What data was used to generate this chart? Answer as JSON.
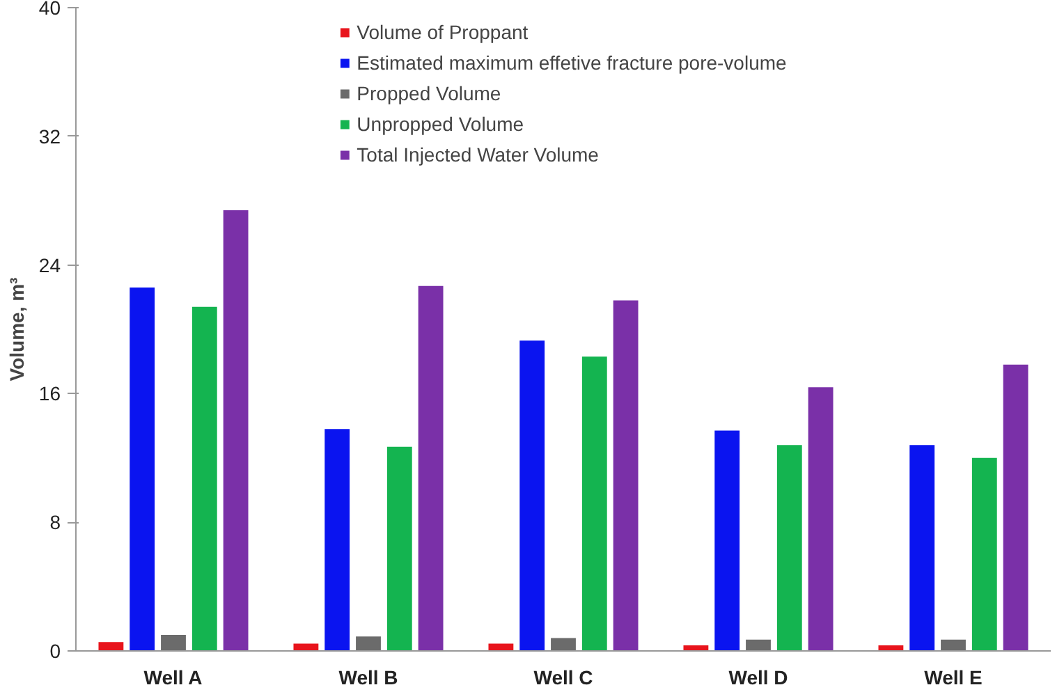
{
  "chart_data": {
    "type": "bar",
    "ylabel": "Volume, m³",
    "categories": [
      "Well A",
      "Well B",
      "Well C",
      "Well D",
      "Well E"
    ],
    "series": [
      {
        "name": "Volume of Proppant",
        "color": "#e8141c",
        "values": [
          0.55,
          0.45,
          0.45,
          0.35,
          0.35
        ]
      },
      {
        "name": "Estimated maximum effetive fracture pore-volume",
        "color": "#0a14f0",
        "values": [
          22.6,
          13.8,
          19.3,
          13.7,
          12.8
        ]
      },
      {
        "name": "Propped Volume",
        "color": "#6b6b6b",
        "values": [
          1.0,
          0.9,
          0.8,
          0.7,
          0.7
        ]
      },
      {
        "name": "Unpropped Volume",
        "color": "#14b450",
        "values": [
          21.4,
          12.7,
          18.3,
          12.8,
          12.0
        ]
      },
      {
        "name": "Total Injected Water Volume",
        "color": "#7a30a8",
        "values": [
          27.4,
          22.7,
          21.8,
          16.4,
          17.8
        ]
      }
    ],
    "ylim": [
      0,
      40
    ],
    "yticks": [
      0,
      8,
      16,
      24,
      32,
      40
    ],
    "grid": false,
    "legend": "top"
  }
}
